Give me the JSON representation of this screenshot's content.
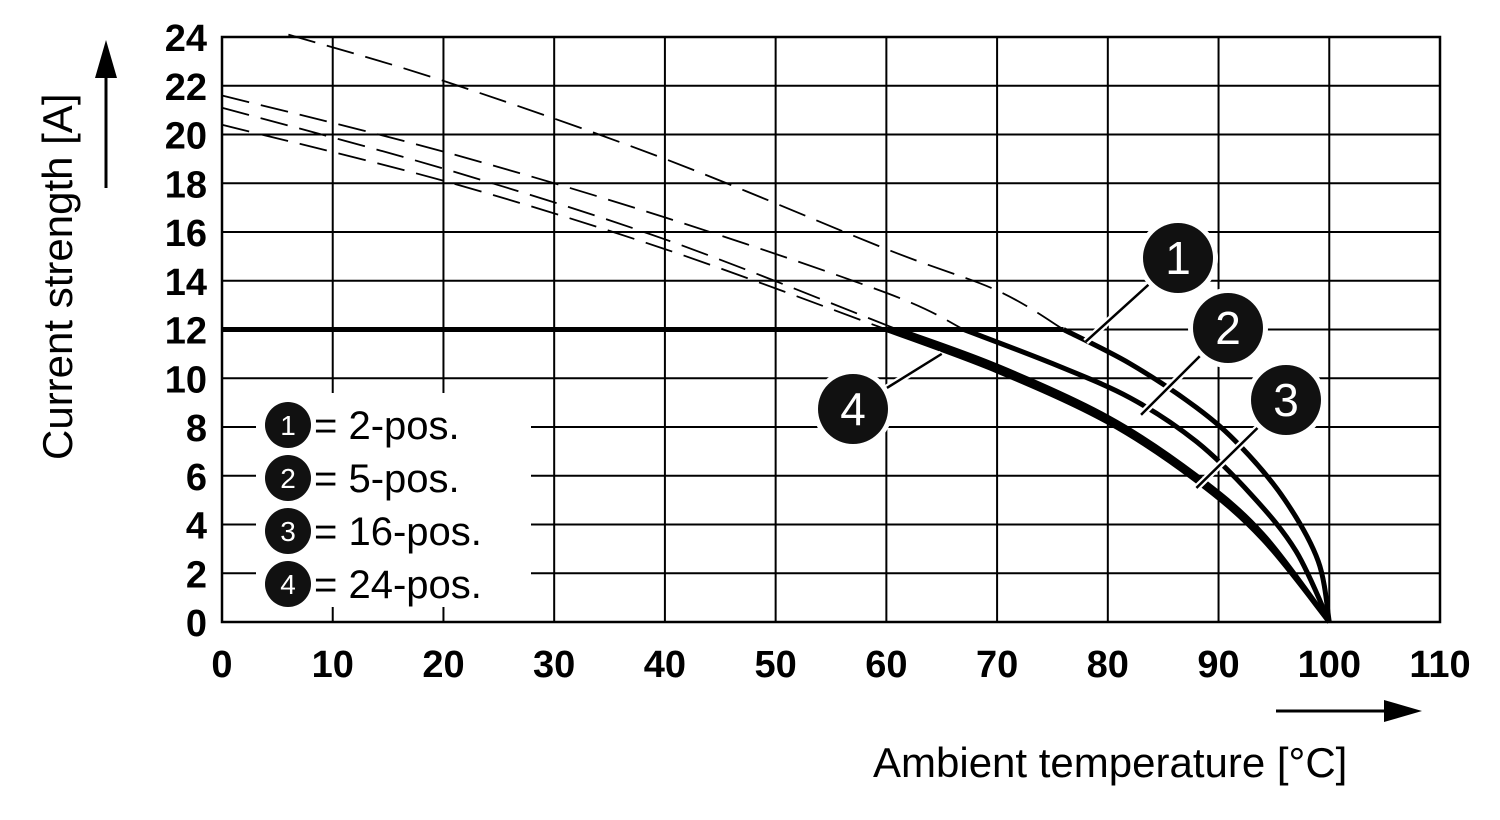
{
  "chart_data": {
    "type": "line",
    "xlabel": "Ambient temperature [°C]",
    "ylabel": "Current strength [A]",
    "xlim": [
      0,
      110
    ],
    "ylim": [
      0,
      24
    ],
    "xticks": [
      0,
      10,
      20,
      30,
      40,
      50,
      60,
      70,
      80,
      90,
      100,
      110
    ],
    "yticks": [
      0,
      2,
      4,
      6,
      8,
      10,
      12,
      14,
      16,
      18,
      20,
      22,
      24
    ],
    "grid": true,
    "legend": {
      "placement": "bottom-left",
      "entries": [
        {
          "marker": "1",
          "text": "= 2-pos."
        },
        {
          "marker": "2",
          "text": "= 5-pos."
        },
        {
          "marker": "3",
          "text": "= 16-pos."
        },
        {
          "marker": "4",
          "text": "= 24-pos."
        }
      ]
    },
    "limit_line": {
      "y": 12,
      "style": "solid-thick"
    },
    "series": [
      {
        "marker": "1",
        "dashed": [
          [
            6,
            24.1
          ],
          [
            20,
            22.2
          ],
          [
            40,
            19.0
          ],
          [
            60,
            15.3
          ],
          [
            70,
            13.6
          ],
          [
            76,
            12.0
          ]
        ],
        "derated": [
          [
            76,
            12.0
          ],
          [
            82,
            10.6
          ],
          [
            88,
            8.8
          ],
          [
            92,
            7.2
          ],
          [
            96,
            5.0
          ],
          [
            99,
            2.5
          ],
          [
            100,
            0
          ]
        ]
      },
      {
        "marker": "2",
        "dashed": [
          [
            0,
            21.6
          ],
          [
            20,
            19.3
          ],
          [
            40,
            16.6
          ],
          [
            60,
            13.5
          ],
          [
            67,
            12.0
          ]
        ],
        "derated": [
          [
            67,
            12.0
          ],
          [
            75,
            10.6
          ],
          [
            82,
            9.2
          ],
          [
            88,
            7.4
          ],
          [
            93,
            5.2
          ],
          [
            97,
            2.9
          ],
          [
            100,
            0
          ]
        ]
      },
      {
        "marker": "3",
        "dashed": [
          [
            0,
            21.1
          ],
          [
            20,
            18.6
          ],
          [
            40,
            15.7
          ],
          [
            61,
            12.0
          ]
        ],
        "derated": [
          [
            61,
            12.0
          ],
          [
            70,
            10.5
          ],
          [
            80,
            8.4
          ],
          [
            88,
            6.0
          ],
          [
            94,
            3.6
          ],
          [
            100,
            0
          ]
        ]
      },
      {
        "marker": "4",
        "dashed": [
          [
            0,
            20.4
          ],
          [
            20,
            18.1
          ],
          [
            40,
            15.3
          ],
          [
            60,
            12.0
          ]
        ],
        "derated": [
          [
            60,
            12.0
          ],
          [
            70,
            10.3
          ],
          [
            80,
            8.2
          ],
          [
            88,
            5.8
          ],
          [
            94,
            3.4
          ],
          [
            100,
            0
          ]
        ]
      }
    ],
    "callouts": [
      {
        "marker": "1",
        "target": [
          78,
          11.5
        ]
      },
      {
        "marker": "2",
        "target": [
          83,
          8.5
        ]
      },
      {
        "marker": "3",
        "target": [
          88,
          5.5
        ]
      },
      {
        "marker": "4",
        "target": [
          65,
          11.0
        ]
      }
    ]
  }
}
